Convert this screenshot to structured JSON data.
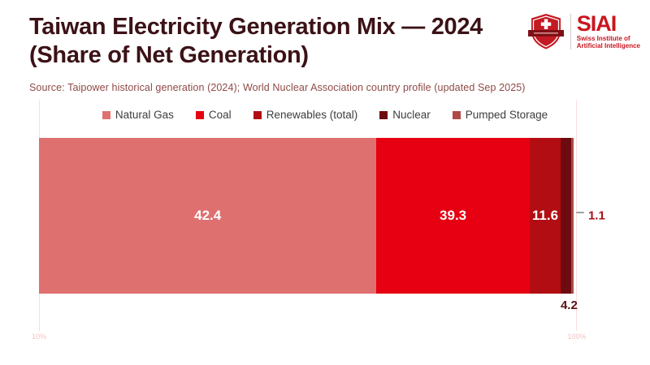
{
  "header": {
    "title": "Taiwan Electricity Generation Mix — 2024 (Share of Net Generation)",
    "source": "Source: Taipower historical generation (2024); World Nuclear Association country profile (updated Sep 2025)"
  },
  "logo": {
    "name": "SIAI",
    "subtitle_line1": "Swiss Institute of",
    "subtitle_line2": "Artificial Intelligence",
    "accent_color": "#c9161f",
    "shield_color": "#c41a23",
    "ribbon_color": "#7d1016"
  },
  "chart_data": {
    "type": "bar",
    "orientation": "horizontal-stacked",
    "title": "Taiwan Electricity Generation Mix — 2024 (Share of Net Generation)",
    "unit": "percent of net generation",
    "x_axis": {
      "scale": "log10",
      "min": 10,
      "max": 100,
      "tick_labels": [
        "10%",
        "100%"
      ],
      "grid": false
    },
    "legend_position": "top-center",
    "series": [
      {
        "name": "Natural Gas",
        "value": 42.4,
        "color": "#df7070",
        "label": "42.4",
        "label_placement": "inside"
      },
      {
        "name": "Coal",
        "value": 39.3,
        "color": "#e60012",
        "label": "39.3",
        "label_placement": "inside"
      },
      {
        "name": "Renewables (total)",
        "value": 11.6,
        "color": "#b20d13",
        "label": "11.6",
        "label_placement": "inside"
      },
      {
        "name": "Nuclear",
        "value": 4.2,
        "color": "#6e0b10",
        "label": "4.2",
        "label_placement": "below"
      },
      {
        "name": "Pumped Storage",
        "value": 1.1,
        "color": "#b04a46",
        "label": "1.1",
        "label_placement": "callout-right"
      }
    ],
    "inside_label_color": "#ffffff",
    "below_label_color": "#5c0e11",
    "callout_label_color": "#a8101a",
    "callout_line_color": "#9f9f9f"
  }
}
